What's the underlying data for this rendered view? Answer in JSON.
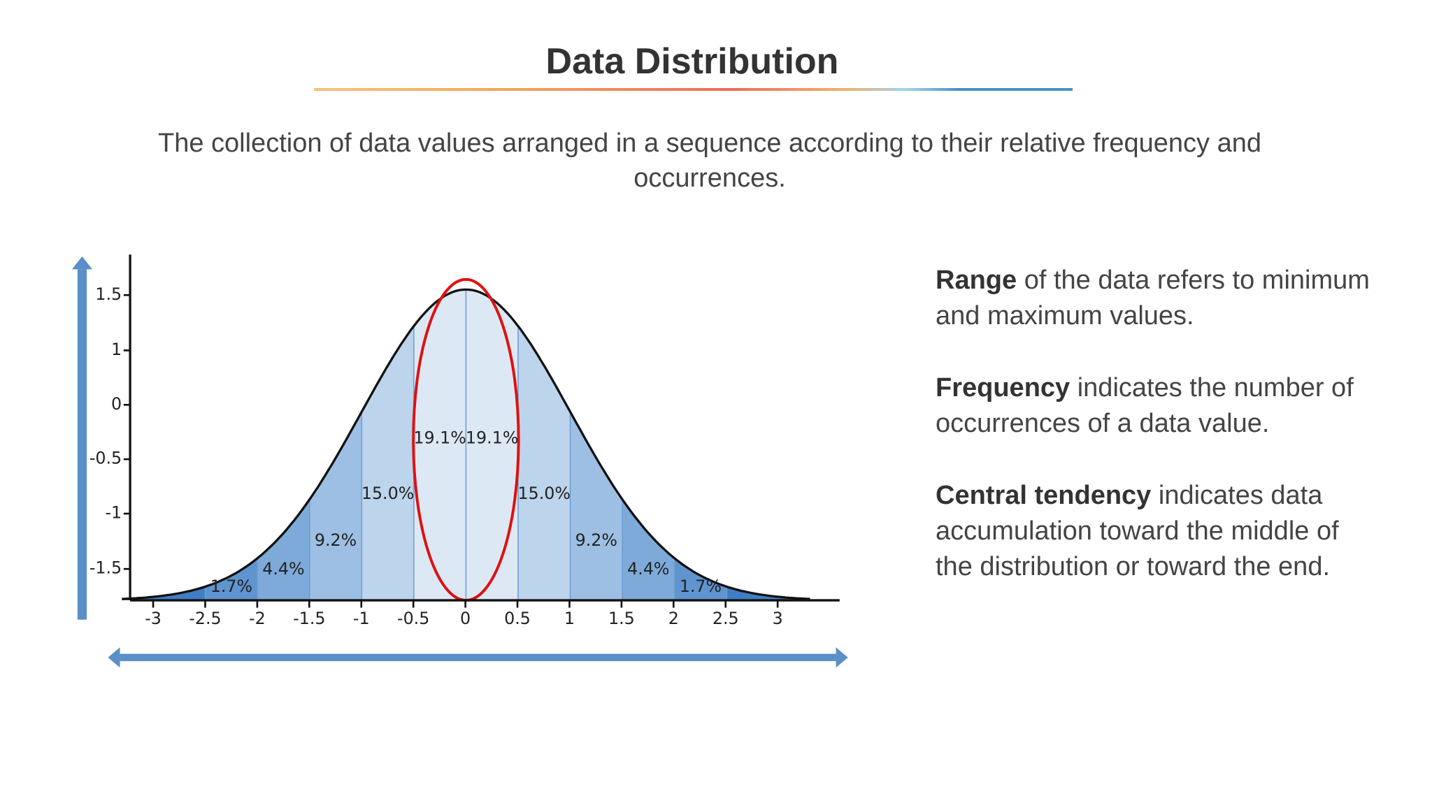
{
  "title": "Data Distribution",
  "description": "The collection of data values arranged in a sequence according to their relative frequency and occurrences.",
  "figure": {
    "x_ticks": [
      "-3",
      "-2.5",
      "-2",
      "-1.5",
      "-1",
      "-0.5",
      "0",
      "0.5",
      "1",
      "1.5",
      "2",
      "2.5",
      "3"
    ],
    "y_ticks": [
      "1.5",
      "1",
      "0",
      "-0.5",
      "-1",
      "-1.5"
    ],
    "segments": [
      "1.7%",
      "4.4%",
      "9.2%",
      "15.0%",
      "19.1%",
      "19.1%",
      "15.0%",
      "9.2%",
      "4.4%",
      "1.7%"
    ]
  },
  "points": [
    {
      "term": "Range",
      "text": "of the data refers to minimum and maximum values."
    },
    {
      "term": "Frequency",
      "text": "indicates the number of occurrences of a data value."
    },
    {
      "term": "Central tendency",
      "text": "indicates data accumulation toward the middle of the distribution or toward the end."
    }
  ]
}
